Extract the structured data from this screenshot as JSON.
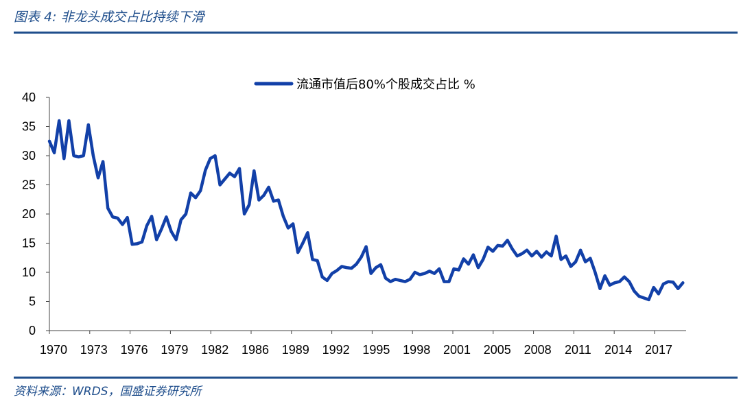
{
  "figure": {
    "title": "图表 4:  非龙头成交占比持续下滑",
    "source": "资料来源：WRDS，国盛证券研究所",
    "accent_color": "#1f4e8c",
    "line_color": "#1240a8"
  },
  "chart_data": {
    "type": "line",
    "title": "",
    "xlabel": "",
    "ylabel": "",
    "ylim": [
      0,
      40
    ],
    "xlim": [
      1970,
      1989.6
    ],
    "y_ticks": [
      0,
      5,
      10,
      15,
      20,
      25,
      30,
      35,
      40
    ],
    "x_tick_labels": [
      "1970",
      "1973",
      "1976",
      "1979",
      "1982",
      "1986",
      "1989",
      "1992",
      "1995",
      "1998",
      "2001",
      "2005",
      "2008",
      "2011",
      "2014",
      "2017"
    ],
    "legend_position": "top",
    "grid": false,
    "series": [
      {
        "name": "流通市值后80%个股成交占比 %",
        "x": [
          1970.0,
          1970.15,
          1970.3,
          1970.45,
          1970.6,
          1970.75,
          1970.9,
          1971.05,
          1971.2,
          1971.35,
          1971.5,
          1971.65,
          1971.8,
          1971.95,
          1972.1,
          1972.25,
          1972.4,
          1972.55,
          1972.7,
          1972.85,
          1973.0,
          1973.15,
          1973.3,
          1973.45,
          1973.6,
          1973.75,
          1973.9,
          1974.05,
          1974.2,
          1974.35,
          1974.5,
          1974.65,
          1974.8,
          1974.95,
          1975.1,
          1975.25,
          1975.4,
          1975.55,
          1975.7,
          1975.85,
          1976.0,
          1976.15,
          1976.3,
          1976.45,
          1976.6,
          1976.75,
          1976.9,
          1977.05,
          1977.2,
          1977.35,
          1977.5,
          1977.65,
          1977.8,
          1977.95,
          1978.1,
          1978.25,
          1978.4,
          1978.55,
          1978.7,
          1978.85,
          1979.0,
          1979.15,
          1979.3,
          1979.45,
          1979.6,
          1979.75,
          1979.9,
          1980.05,
          1980.2,
          1980.35,
          1980.5,
          1980.65,
          1980.8,
          1980.95,
          1981.1,
          1981.25,
          1981.4,
          1981.55,
          1981.7,
          1981.85,
          1982.0,
          1982.15,
          1982.3,
          1982.45,
          1982.6,
          1982.75,
          1982.9,
          1983.05,
          1983.2,
          1983.35,
          1983.5,
          1983.65,
          1983.8,
          1983.95,
          1984.1,
          1984.25,
          1984.4,
          1984.55,
          1984.7,
          1984.85,
          1985.0,
          1985.15,
          1985.3,
          1985.45,
          1985.6,
          1985.75,
          1985.9,
          1986.05,
          1986.2,
          1986.35,
          1986.5,
          1986.65,
          1986.8,
          1986.95,
          1987.1,
          1987.25,
          1987.4,
          1987.55,
          1987.7,
          1987.85,
          1988.0,
          1988.15,
          1988.3,
          1988.45,
          1988.6,
          1988.75,
          1988.9,
          1989.05,
          1989.2,
          1989.35,
          1989.5
        ],
        "values": [
          32.5,
          30.5,
          36.0,
          29.5,
          36.0,
          30.0,
          29.8,
          30.0,
          35.3,
          30.0,
          26.2,
          29.0,
          21.0,
          19.5,
          19.3,
          18.2,
          19.4,
          14.8,
          14.9,
          15.2,
          18.0,
          19.6,
          15.6,
          17.4,
          19.5,
          17.0,
          15.6,
          19.0,
          20.0,
          23.6,
          22.8,
          24.0,
          27.5,
          29.5,
          30.0,
          25.0,
          26.0,
          27.0,
          26.4,
          27.8,
          20.0,
          21.6,
          27.4,
          22.4,
          23.2,
          24.6,
          22.2,
          22.4,
          19.6,
          17.6,
          18.3,
          13.4,
          15.0,
          16.8,
          12.2,
          12.0,
          9.2,
          8.6,
          9.8,
          10.3,
          11.0,
          10.8,
          10.7,
          11.4,
          12.6,
          14.4,
          9.8,
          10.8,
          11.3,
          9.0,
          8.4,
          8.8,
          8.6,
          8.4,
          8.8,
          10.0,
          9.6,
          9.8,
          10.2,
          9.8,
          10.6,
          8.4,
          8.4,
          10.6,
          10.4,
          12.3,
          11.4,
          13.0,
          10.8,
          12.2,
          14.3,
          13.6,
          14.6,
          14.5,
          15.5,
          14.0,
          12.8,
          13.2,
          13.8,
          12.8,
          13.6,
          12.6,
          13.5,
          12.8,
          16.2,
          12.2,
          12.8,
          11.0,
          11.8,
          13.8,
          11.8,
          12.4,
          10.0,
          7.2,
          9.4,
          7.8,
          8.2,
          8.4,
          9.2,
          8.4,
          6.8,
          5.9,
          5.6,
          5.3,
          7.4,
          6.3,
          8.0,
          8.4,
          8.3,
          7.2,
          8.2
        ]
      }
    ]
  }
}
